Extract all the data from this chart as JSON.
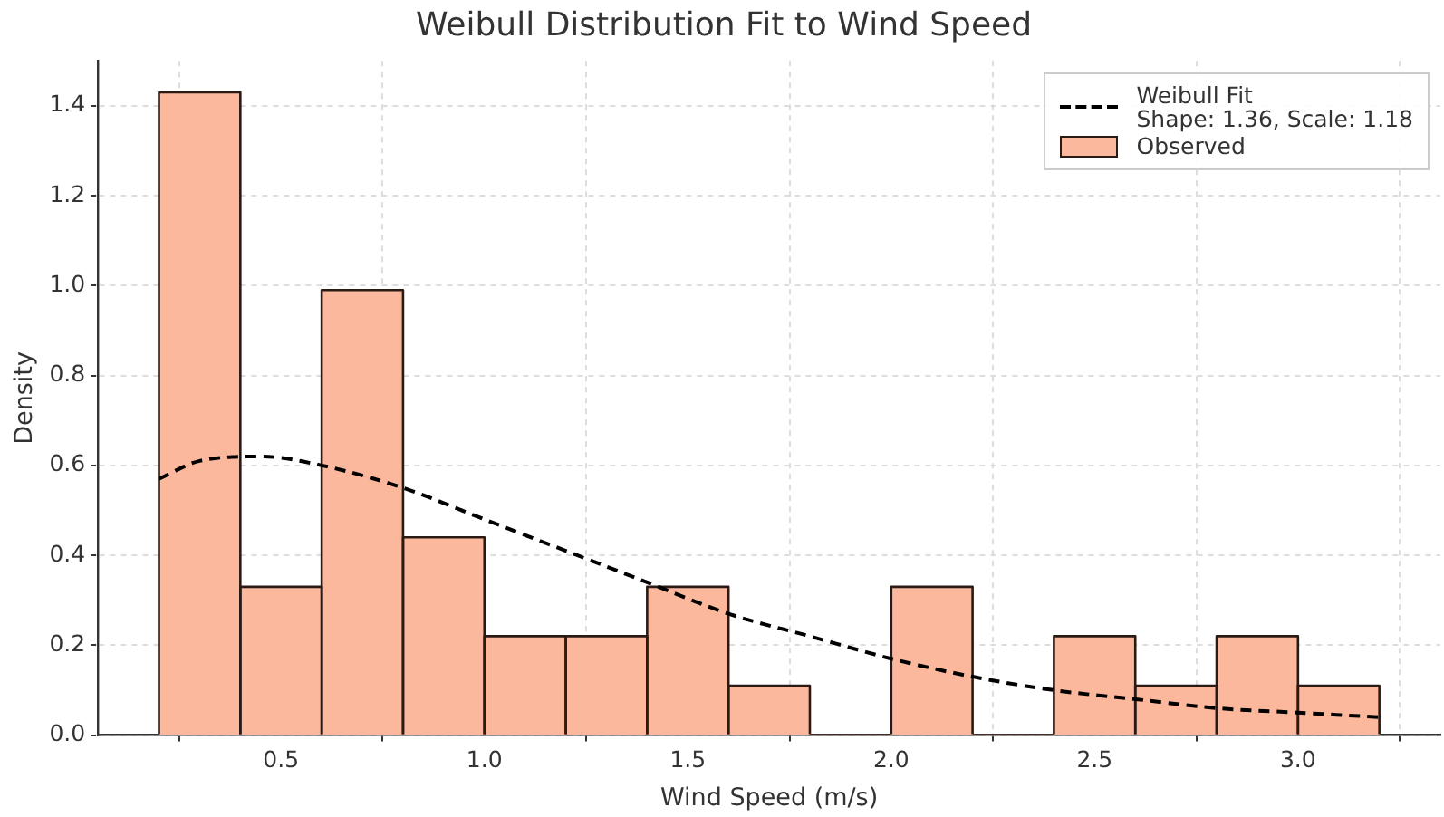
{
  "chart_data": {
    "type": "histogram",
    "title": "Weibull Distribution Fit to Wind Speed",
    "xlabel": "Wind Speed (m/s)",
    "ylabel": "Density",
    "bins": [
      0.2,
      0.4,
      0.6,
      0.8,
      1.0,
      1.2,
      1.4,
      1.6,
      1.8,
      2.0,
      2.2,
      2.4,
      2.6,
      2.8,
      3.0,
      3.2
    ],
    "series": [
      {
        "name": "Observed",
        "color": "#fcb89c",
        "values": [
          1.43,
          0.33,
          0.99,
          0.44,
          0.22,
          0.22,
          0.33,
          0.11,
          0,
          0.33,
          0,
          0.22,
          0.11,
          0.22,
          0.11
        ]
      },
      {
        "name": "Weibull Fit\nShape: 1.36, Scale: 1.18",
        "type": "line",
        "color": "#000000",
        "line_style": "dashed",
        "marker": "none",
        "x": [
          0.2,
          0.3,
          0.45,
          0.6,
          0.8,
          1.0,
          1.2,
          1.4,
          1.6,
          1.8,
          2.0,
          2.2,
          2.4,
          2.6,
          2.8,
          3.0,
          3.2
        ],
        "values": [
          0.57,
          0.61,
          0.62,
          0.6,
          0.55,
          0.48,
          0.41,
          0.34,
          0.27,
          0.22,
          0.17,
          0.13,
          0.1,
          0.08,
          0.06,
          0.05,
          0.04
        ]
      }
    ],
    "xlim": [
      0.05,
      3.35
    ],
    "xticks": [
      0.5,
      {
        "value": 1,
        "label": "1.0"
      },
      1.5,
      {
        "value": 2,
        "label": "2.0"
      },
      2.5,
      {
        "value": 3,
        "label": "3.0"
      }
    ],
    "ylim": [
      0,
      1.5
    ],
    "yticks": [
      {
        "value": 0,
        "label": "0.0"
      },
      0.2,
      0.4,
      0.6,
      0.8,
      {
        "value": 1,
        "label": "1.0"
      },
      1.2,
      1.4
    ],
    "grid": true,
    "legend": "top right"
  }
}
